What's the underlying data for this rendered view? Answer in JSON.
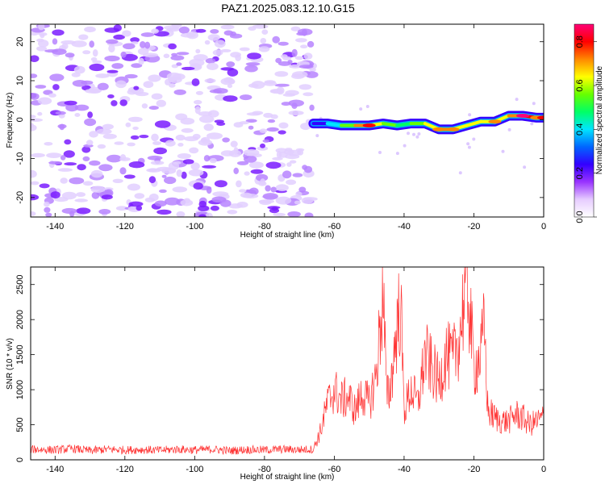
{
  "title": "PAZ1.2025.083.12.10.G15",
  "chart_data": [
    {
      "type": "heatmap",
      "xlabel": "Height of straight line (km)",
      "ylabel": "Frequency (Hz)",
      "xlim": [
        -147,
        0
      ],
      "ylim": [
        -25,
        24.5
      ],
      "x_ticks": [
        -140,
        -120,
        -100,
        -80,
        -60,
        -40,
        -20,
        0
      ],
      "y_ticks": [
        -20,
        -10,
        0,
        10,
        20
      ],
      "noise_region": {
        "x_range": [
          -147,
          -66
        ],
        "note": "scattered low-amplitude noise"
      },
      "signal_ridge": {
        "x": [
          -66,
          -62,
          -58,
          -54,
          -50,
          -46,
          -42,
          -38,
          -34,
          -30,
          -26,
          -22,
          -18,
          -14,
          -10,
          -6,
          -2,
          0
        ],
        "frequency": [
          -1.0,
          -1.0,
          -1.5,
          -1.5,
          -1.5,
          -1.0,
          -1.5,
          -1.0,
          -1.0,
          -2.5,
          -2.5,
          -1.5,
          -0.5,
          -0.5,
          1.0,
          1.0,
          0.5,
          0.5
        ],
        "amplitude": [
          0.2,
          0.35,
          0.45,
          0.6,
          0.8,
          0.55,
          0.5,
          0.45,
          0.6,
          0.75,
          0.7,
          0.6,
          0.65,
          0.7,
          0.6,
          0.85,
          0.75,
          0.8
        ]
      },
      "colorbar": {
        "label": "Normalized spectral amplitude",
        "range": [
          0.0,
          0.88
        ],
        "ticks": [
          0.0,
          0.2,
          0.4,
          0.6,
          0.8
        ],
        "colors": [
          "#ffffff",
          "#e6ccff",
          "#9933ff",
          "#3300ff",
          "#0066ff",
          "#00e5ff",
          "#00ff66",
          "#66ff00",
          "#ffff00",
          "#ff8800",
          "#ff0000",
          "#ff0077"
        ]
      }
    },
    {
      "type": "line",
      "xlabel": "Height of straight line (km)",
      "ylabel": "SNR (10 * v/v)",
      "xlim": [
        -147,
        0
      ],
      "ylim": [
        0,
        2750
      ],
      "x_ticks": [
        -140,
        -120,
        -100,
        -80,
        -60,
        -40,
        -20,
        0
      ],
      "y_ticks": [
        0,
        500,
        1000,
        1500,
        2000,
        2500
      ],
      "color": "#ff3333",
      "series": [
        {
          "x": [
            -147,
            -140,
            -135,
            -130,
            -125,
            -120,
            -115,
            -110,
            -105,
            -100,
            -95,
            -90,
            -85,
            -80,
            -75,
            -70,
            -66,
            -64,
            -62,
            -60,
            -58,
            -56,
            -54,
            -52,
            -50,
            -48,
            -46,
            -45,
            -44,
            -42,
            -41,
            -40,
            -38,
            -36,
            -34,
            -32,
            -30,
            -28,
            -26,
            -24,
            -22,
            -20,
            -18,
            -17,
            -16,
            -14,
            -12,
            -10,
            -8,
            -6,
            -4,
            -2,
            0
          ],
          "values": [
            150,
            140,
            160,
            130,
            150,
            140,
            145,
            135,
            150,
            140,
            150,
            130,
            145,
            140,
            150,
            145,
            150,
            400,
            800,
            1000,
            850,
            900,
            700,
            950,
            800,
            1200,
            2400,
            900,
            1000,
            1900,
            2250,
            700,
            1000,
            800,
            1500,
            1300,
            1100,
            1500,
            1400,
            1800,
            2700,
            1300,
            1500,
            1900,
            700,
            600,
            550,
            550,
            650,
            600,
            500,
            550,
            600
          ]
        }
      ]
    }
  ]
}
